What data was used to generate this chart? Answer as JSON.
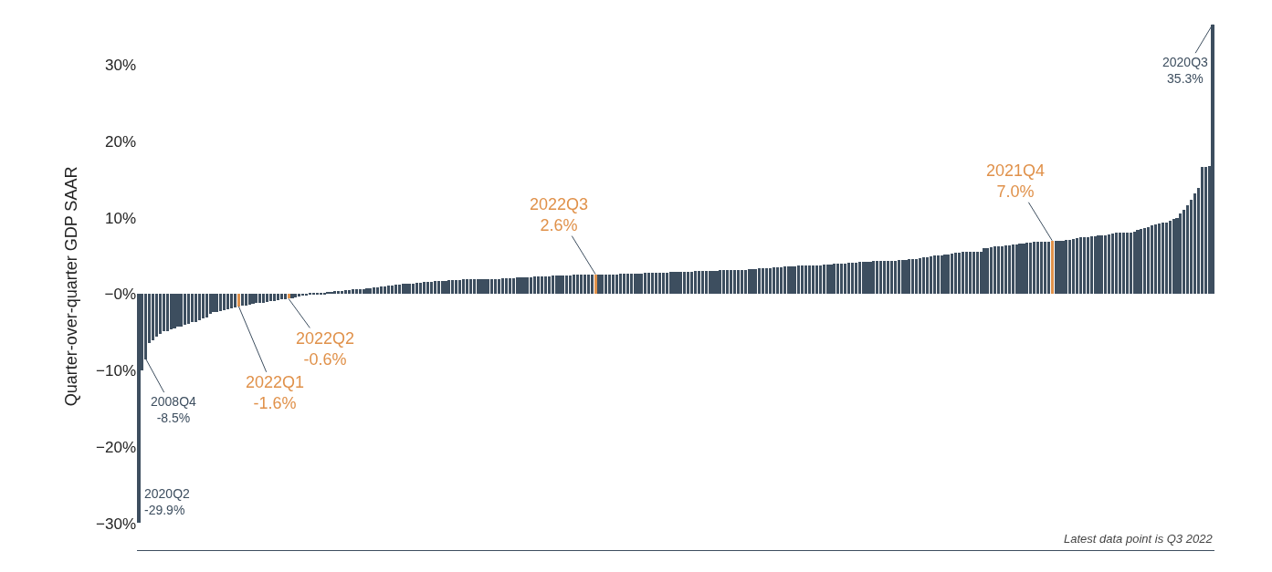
{
  "chart_data": {
    "type": "bar",
    "ylabel": "Quarter-over-quarter GDP SAAR",
    "categories": [
      null,
      null,
      null,
      null,
      null,
      null,
      null,
      null,
      null,
      null,
      null,
      null,
      null,
      null,
      null,
      null,
      null,
      null,
      null,
      null,
      null,
      null,
      null,
      null,
      null,
      null,
      null,
      null,
      null,
      null,
      null,
      null,
      null,
      null,
      null,
      null,
      null,
      null,
      null,
      null,
      null,
      null,
      null,
      null,
      null,
      null,
      null,
      null,
      null,
      null,
      null,
      null,
      null,
      null,
      null,
      null,
      null,
      null,
      null,
      null,
      null,
      null,
      null,
      null,
      null,
      null,
      null,
      null,
      null,
      null,
      null,
      null,
      null,
      null,
      null,
      null,
      null,
      null,
      null,
      null,
      null,
      null,
      null,
      null,
      null,
      null,
      null,
      null,
      null,
      null,
      null,
      null,
      null,
      null,
      null,
      null,
      null,
      null,
      null,
      null,
      null,
      null,
      null,
      null,
      null,
      null,
      null,
      null,
      null,
      null,
      null,
      null,
      null,
      null,
      null,
      null,
      null,
      null,
      null,
      null,
      null,
      null,
      null,
      null,
      null,
      null,
      null,
      null,
      null,
      null,
      null,
      null,
      null,
      null,
      null,
      null,
      null,
      null,
      null,
      null,
      null,
      null,
      null,
      null,
      null,
      null,
      null,
      null,
      null,
      null,
      null,
      null,
      null,
      null,
      null,
      null,
      null,
      null,
      null,
      null,
      null,
      null,
      null,
      null,
      null,
      null,
      null,
      null,
      null,
      null,
      null,
      null,
      null,
      null,
      null,
      null,
      null,
      null,
      null,
      null,
      null,
      null,
      null,
      null,
      null,
      null,
      null,
      null,
      null,
      null,
      null,
      null,
      null,
      null,
      null,
      null,
      null,
      null,
      null,
      null,
      null,
      null,
      null,
      null,
      null,
      null,
      null,
      null,
      null,
      null,
      null,
      null,
      null,
      null,
      null,
      null,
      null,
      null,
      null,
      null,
      null,
      null,
      null,
      null,
      null,
      null,
      null,
      null,
      null,
      null,
      null,
      null,
      null,
      null,
      null,
      null,
      null,
      null,
      null,
      null,
      null,
      null,
      null,
      null,
      null,
      null,
      null,
      null,
      null,
      null,
      null,
      null,
      null,
      null,
      null,
      null,
      null,
      null,
      null,
      null,
      null,
      null,
      null,
      null,
      null,
      null,
      null,
      null,
      null,
      null,
      null,
      null,
      null,
      null,
      null,
      null,
      null,
      null,
      null,
      null,
      null,
      null,
      null,
      null,
      null,
      null,
      null,
      null,
      null,
      null,
      null,
      null,
      null,
      null,
      null,
      null,
      null,
      null,
      null,
      null,
      null,
      null
    ],
    "values": [
      -29.9,
      -10.0,
      -8.5,
      -6.4,
      -6.0,
      -5.6,
      -5.2,
      -4.9,
      -4.8,
      -4.6,
      -4.5,
      -4.3,
      -4.2,
      -4.0,
      -3.9,
      -3.7,
      -3.6,
      -3.4,
      -3.2,
      -3.0,
      -2.6,
      -2.3,
      -2.3,
      -2.2,
      -2.1,
      -2.0,
      -1.9,
      -1.8,
      -1.6,
      -1.5,
      -1.5,
      -1.4,
      -1.3,
      -1.2,
      -1.2,
      -1.1,
      -1.0,
      -0.9,
      -0.9,
      -0.8,
      -0.7,
      -0.7,
      -0.6,
      -0.5,
      -0.4,
      -0.3,
      -0.2,
      -0.1,
      0.1,
      0.1,
      0.2,
      0.2,
      0.2,
      0.3,
      0.3,
      0.4,
      0.4,
      0.4,
      0.5,
      0.5,
      0.6,
      0.6,
      0.7,
      0.7,
      0.8,
      0.8,
      0.9,
      0.9,
      1.0,
      1.0,
      1.1,
      1.1,
      1.2,
      1.2,
      1.3,
      1.3,
      1.4,
      1.4,
      1.5,
      1.5,
      1.6,
      1.6,
      1.6,
      1.7,
      1.7,
      1.7,
      1.7,
      1.8,
      1.8,
      1.8,
      1.8,
      1.9,
      1.9,
      1.9,
      1.9,
      1.9,
      2.0,
      2.0,
      2.0,
      2.0,
      2.0,
      2.0,
      2.1,
      2.1,
      2.1,
      2.1,
      2.2,
      2.2,
      2.2,
      2.2,
      2.2,
      2.3,
      2.3,
      2.3,
      2.3,
      2.3,
      2.4,
      2.4,
      2.4,
      2.4,
      2.4,
      2.4,
      2.5,
      2.5,
      2.5,
      2.5,
      2.5,
      2.5,
      2.6,
      2.6,
      2.6,
      2.6,
      2.6,
      2.6,
      2.6,
      2.7,
      2.7,
      2.7,
      2.7,
      2.7,
      2.7,
      2.7,
      2.8,
      2.8,
      2.8,
      2.8,
      2.8,
      2.8,
      2.8,
      2.9,
      2.9,
      2.9,
      2.9,
      2.9,
      2.9,
      2.9,
      3.0,
      3.0,
      3.0,
      3.0,
      3.0,
      3.0,
      3.0,
      3.1,
      3.1,
      3.1,
      3.1,
      3.2,
      3.2,
      3.2,
      3.2,
      3.3,
      3.3,
      3.3,
      3.4,
      3.4,
      3.4,
      3.4,
      3.5,
      3.5,
      3.5,
      3.6,
      3.6,
      3.6,
      3.6,
      3.7,
      3.7,
      3.7,
      3.8,
      3.8,
      3.8,
      3.8,
      3.9,
      3.9,
      3.9,
      4.0,
      4.0,
      4.0,
      4.0,
      4.1,
      4.1,
      4.1,
      4.2,
      4.2,
      4.2,
      4.2,
      4.3,
      4.3,
      4.3,
      4.4,
      4.4,
      4.4,
      4.4,
      4.5,
      4.5,
      4.5,
      4.6,
      4.6,
      4.6,
      4.7,
      4.8,
      4.8,
      4.9,
      5.0,
      5.0,
      5.1,
      5.2,
      5.2,
      5.3,
      5.4,
      5.4,
      5.5,
      5.5,
      5.5,
      5.5,
      5.5,
      5.5,
      6.0,
      6.0,
      6.1,
      6.2,
      6.3,
      6.3,
      6.4,
      6.4,
      6.5,
      6.5,
      6.6,
      6.6,
      6.7,
      6.7,
      6.8,
      6.8,
      6.9,
      6.9,
      6.9,
      7.0,
      7.0,
      7.0,
      7.0,
      7.1,
      7.1,
      7.2,
      7.3,
      7.4,
      7.5,
      7.5,
      7.6,
      7.6,
      7.7,
      7.7,
      7.7,
      7.8,
      7.9,
      8.0,
      8.0,
      8.0,
      8.0,
      8.0,
      8.2,
      8.4,
      8.5,
      8.6,
      8.8,
      9.0,
      9.1,
      9.2,
      9.3,
      9.4,
      9.6,
      9.8,
      10.0,
      10.5,
      11.0,
      11.6,
      12.4,
      13.2,
      13.9,
      16.6,
      16.6,
      16.7,
      35.3
    ],
    "colors": [
      "#3d4e5f",
      "#3d4e5f",
      "#3d4e5f",
      "#3d4e5f",
      "#3d4e5f",
      "#3d4e5f",
      "#3d4e5f",
      "#3d4e5f",
      "#3d4e5f",
      "#3d4e5f",
      "#3d4e5f",
      "#3d4e5f",
      "#3d4e5f",
      "#3d4e5f",
      "#3d4e5f",
      "#3d4e5f",
      "#3d4e5f",
      "#3d4e5f",
      "#3d4e5f",
      "#3d4e5f",
      "#3d4e5f",
      "#3d4e5f",
      "#3d4e5f",
      "#3d4e5f",
      "#3d4e5f",
      "#3d4e5f",
      "#3d4e5f",
      "#3d4e5f",
      "#e0914a",
      "#3d4e5f",
      "#3d4e5f",
      "#3d4e5f",
      "#3d4e5f",
      "#3d4e5f",
      "#3d4e5f",
      "#3d4e5f",
      "#3d4e5f",
      "#3d4e5f",
      "#3d4e5f",
      "#3d4e5f",
      "#3d4e5f",
      "#3d4e5f",
      "#e0914a",
      "#3d4e5f",
      "#3d4e5f",
      "#3d4e5f",
      "#3d4e5f",
      "#3d4e5f",
      "#3d4e5f",
      "#3d4e5f",
      "#3d4e5f",
      "#3d4e5f",
      "#3d4e5f",
      "#3d4e5f",
      "#3d4e5f",
      "#3d4e5f",
      "#3d4e5f",
      "#3d4e5f",
      "#3d4e5f",
      "#3d4e5f",
      "#3d4e5f",
      "#3d4e5f",
      "#3d4e5f",
      "#3d4e5f",
      "#3d4e5f",
      "#3d4e5f",
      "#3d4e5f",
      "#3d4e5f",
      "#3d4e5f",
      "#3d4e5f",
      "#3d4e5f",
      "#3d4e5f",
      "#3d4e5f",
      "#3d4e5f",
      "#3d4e5f",
      "#3d4e5f",
      "#3d4e5f",
      "#3d4e5f",
      "#3d4e5f",
      "#3d4e5f",
      "#3d4e5f",
      "#3d4e5f",
      "#3d4e5f",
      "#3d4e5f",
      "#3d4e5f",
      "#3d4e5f",
      "#3d4e5f",
      "#3d4e5f",
      "#3d4e5f",
      "#3d4e5f",
      "#3d4e5f",
      "#3d4e5f",
      "#3d4e5f",
      "#3d4e5f",
      "#3d4e5f",
      "#3d4e5f",
      "#3d4e5f",
      "#3d4e5f",
      "#3d4e5f",
      "#3d4e5f",
      "#3d4e5f",
      "#3d4e5f",
      "#3d4e5f",
      "#3d4e5f",
      "#3d4e5f",
      "#3d4e5f",
      "#3d4e5f",
      "#3d4e5f",
      "#3d4e5f",
      "#3d4e5f",
      "#3d4e5f",
      "#3d4e5f",
      "#3d4e5f",
      "#3d4e5f",
      "#3d4e5f",
      "#3d4e5f",
      "#3d4e5f",
      "#3d4e5f",
      "#3d4e5f",
      "#3d4e5f",
      "#3d4e5f",
      "#3d4e5f",
      "#3d4e5f",
      "#3d4e5f",
      "#3d4e5f",
      "#3d4e5f",
      "#3d4e5f",
      "#3d4e5f",
      "#e0914a",
      "#3d4e5f",
      "#3d4e5f",
      "#3d4e5f",
      "#3d4e5f",
      "#3d4e5f",
      "#3d4e5f",
      "#3d4e5f",
      "#3d4e5f",
      "#3d4e5f",
      "#3d4e5f",
      "#3d4e5f",
      "#3d4e5f",
      "#3d4e5f",
      "#3d4e5f",
      "#3d4e5f",
      "#3d4e5f",
      "#3d4e5f",
      "#3d4e5f",
      "#3d4e5f",
      "#3d4e5f",
      "#3d4e5f",
      "#3d4e5f",
      "#3d4e5f",
      "#3d4e5f",
      "#3d4e5f",
      "#3d4e5f",
      "#3d4e5f",
      "#3d4e5f",
      "#3d4e5f",
      "#3d4e5f",
      "#3d4e5f",
      "#3d4e5f",
      "#3d4e5f",
      "#3d4e5f",
      "#3d4e5f",
      "#3d4e5f",
      "#3d4e5f",
      "#3d4e5f",
      "#3d4e5f",
      "#3d4e5f",
      "#3d4e5f",
      "#3d4e5f",
      "#3d4e5f",
      "#3d4e5f",
      "#3d4e5f",
      "#3d4e5f",
      "#3d4e5f",
      "#3d4e5f",
      "#3d4e5f",
      "#3d4e5f",
      "#3d4e5f",
      "#3d4e5f",
      "#3d4e5f",
      "#3d4e5f",
      "#3d4e5f",
      "#3d4e5f",
      "#3d4e5f",
      "#3d4e5f",
      "#3d4e5f",
      "#3d4e5f",
      "#3d4e5f",
      "#3d4e5f",
      "#3d4e5f",
      "#3d4e5f",
      "#3d4e5f",
      "#3d4e5f",
      "#3d4e5f",
      "#3d4e5f",
      "#3d4e5f",
      "#3d4e5f",
      "#3d4e5f",
      "#3d4e5f",
      "#3d4e5f",
      "#3d4e5f",
      "#3d4e5f",
      "#3d4e5f",
      "#3d4e5f",
      "#3d4e5f",
      "#3d4e5f",
      "#3d4e5f",
      "#3d4e5f",
      "#3d4e5f",
      "#3d4e5f",
      "#3d4e5f",
      "#3d4e5f",
      "#3d4e5f",
      "#3d4e5f",
      "#3d4e5f",
      "#3d4e5f",
      "#3d4e5f",
      "#3d4e5f",
      "#3d4e5f",
      "#3d4e5f",
      "#3d4e5f",
      "#3d4e5f",
      "#3d4e5f",
      "#3d4e5f",
      "#3d4e5f",
      "#3d4e5f",
      "#3d4e5f",
      "#3d4e5f",
      "#3d4e5f",
      "#3d4e5f",
      "#3d4e5f",
      "#3d4e5f",
      "#3d4e5f",
      "#3d4e5f",
      "#3d4e5f",
      "#3d4e5f",
      "#3d4e5f",
      "#3d4e5f",
      "#3d4e5f",
      "#3d4e5f",
      "#3d4e5f",
      "#3d4e5f",
      "#3d4e5f",
      "#3d4e5f",
      "#3d4e5f",
      "#3d4e5f",
      "#3d4e5f",
      "#3d4e5f",
      "#3d4e5f",
      "#3d4e5f",
      "#3d4e5f",
      "#3d4e5f",
      "#3d4e5f",
      "#3d4e5f",
      "#e0914a",
      "#3d4e5f",
      "#3d4e5f",
      "#3d4e5f",
      "#3d4e5f",
      "#3d4e5f",
      "#3d4e5f",
      "#3d4e5f",
      "#3d4e5f",
      "#3d4e5f",
      "#3d4e5f",
      "#3d4e5f",
      "#3d4e5f",
      "#3d4e5f",
      "#3d4e5f",
      "#3d4e5f",
      "#3d4e5f",
      "#3d4e5f",
      "#3d4e5f",
      "#3d4e5f",
      "#3d4e5f",
      "#3d4e5f",
      "#3d4e5f",
      "#3d4e5f",
      "#3d4e5f",
      "#3d4e5f",
      "#3d4e5f",
      "#3d4e5f",
      "#3d4e5f",
      "#3d4e5f",
      "#3d4e5f",
      "#3d4e5f",
      "#3d4e5f",
      "#3d4e5f",
      "#3d4e5f",
      "#3d4e5f",
      "#3d4e5f",
      "#3d4e5f",
      "#3d4e5f",
      "#3d4e5f",
      "#3d4e5f",
      "#3d4e5f",
      "#3d4e5f",
      "#3d4e5f",
      "#3d4e5f",
      "#3d4e5f"
    ],
    "ylim": [
      -33.5,
      35.5
    ],
    "yticks": [
      {
        "value": -30,
        "label": "−30%"
      },
      {
        "value": -20,
        "label": "−20%"
      },
      {
        "value": -10,
        "label": "−10%"
      },
      {
        "value": 0,
        "label": "−0%"
      },
      {
        "value": 10,
        "label": "10%"
      },
      {
        "value": 20,
        "label": "20%"
      },
      {
        "value": 30,
        "label": "30%"
      }
    ],
    "tick_labels": "y",
    "grid": false,
    "legend": false,
    "annotations": [
      "2020Q2\n-29.9%",
      "2008Q4\n-8.5%",
      "2022Q1\n-1.6%",
      "2022Q2\n-0.6%",
      "2022Q3\n2.6%",
      "2021Q4\n7.0%",
      "2020Q3\n35.3%",
      "Latest data point is Q3 2022"
    ]
  }
}
